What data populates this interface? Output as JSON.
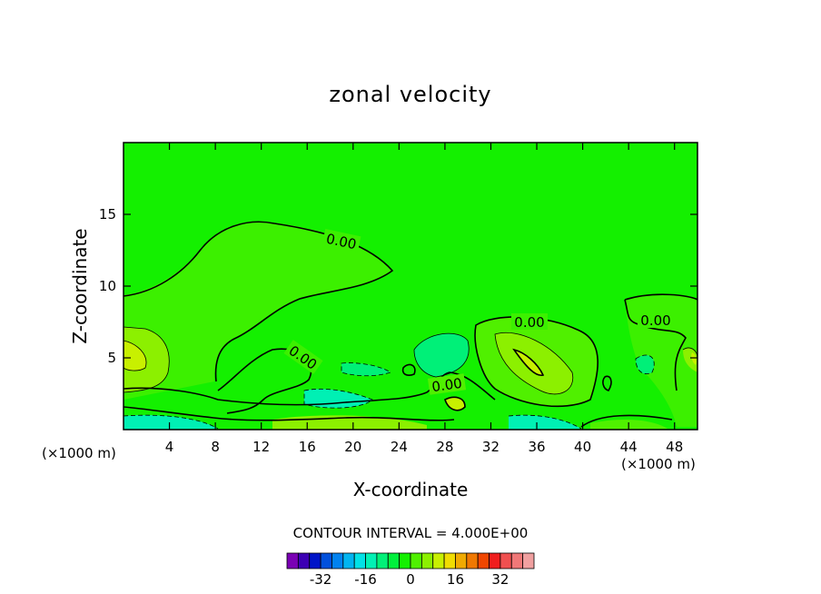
{
  "chart_data": {
    "type": "heatmap",
    "title": "zonal velocity",
    "xlabel": "X-coordinate",
    "ylabel": "Z-coordinate",
    "x_unit": "(×1000 m)",
    "xlim": [
      0,
      50
    ],
    "ylim": [
      0,
      20
    ],
    "x_ticks": [
      4,
      8,
      12,
      16,
      20,
      24,
      28,
      32,
      36,
      40,
      44,
      48
    ],
    "y_ticks": [
      5,
      10,
      15
    ],
    "contour_interval_text": "CONTOUR INTERVAL = 4.000E+00",
    "contour_labels": [
      "0.00",
      "0.00",
      "0.00",
      "0.00",
      "0.00"
    ],
    "colorbar": {
      "ticks": [
        "-32",
        "-16",
        "0",
        "16",
        "32"
      ],
      "colors": [
        "#7a00b4",
        "#3c00b4",
        "#0014c8",
        "#0050dc",
        "#0082f0",
        "#00b4f0",
        "#00e1e6",
        "#00f0b4",
        "#00f078",
        "#00f03c",
        "#14f000",
        "#50f000",
        "#8cf000",
        "#c8f000",
        "#f0dc00",
        "#f0aa00",
        "#f07800",
        "#f04600",
        "#f01e1e",
        "#f05050",
        "#f07878",
        "#f0a0a0"
      ]
    }
  }
}
